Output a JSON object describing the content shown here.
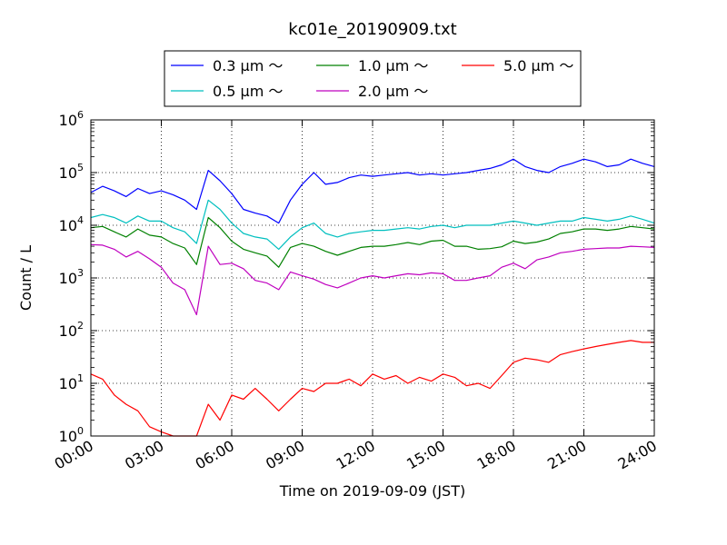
{
  "chart_data": {
    "type": "line",
    "title": "kc01e_20190909.txt",
    "xlabel": "Time on 2019-09-09 (JST)",
    "ylabel": "Count / L",
    "y_scale": "log",
    "ylim": [
      1,
      1000000
    ],
    "xlim_hours": [
      0,
      24
    ],
    "x_ticks": [
      "00:00",
      "03:00",
      "06:00",
      "09:00",
      "12:00",
      "15:00",
      "18:00",
      "21:00",
      "24:00"
    ],
    "y_ticks": [
      {
        "base": "10",
        "exp": "0"
      },
      {
        "base": "10",
        "exp": "1"
      },
      {
        "base": "10",
        "exp": "2"
      },
      {
        "base": "10",
        "exp": "3"
      },
      {
        "base": "10",
        "exp": "4"
      },
      {
        "base": "10",
        "exp": "5"
      },
      {
        "base": "10",
        "exp": "6"
      }
    ],
    "grid": true,
    "legend_placement": "top-center",
    "x_hours": [
      0,
      0.5,
      1,
      1.5,
      2,
      2.5,
      3,
      3.5,
      4,
      4.5,
      5,
      5.5,
      6,
      6.5,
      7,
      7.5,
      8,
      8.5,
      9,
      9.5,
      10,
      10.5,
      11,
      11.5,
      12,
      12.5,
      13,
      13.5,
      14,
      14.5,
      15,
      15.5,
      16,
      16.5,
      17,
      17.5,
      18,
      18.5,
      19,
      19.5,
      20,
      20.5,
      21,
      21.5,
      22,
      22.5,
      23,
      23.5,
      24
    ],
    "series": [
      {
        "name": "0.3 μm ～",
        "color": "#0000ff",
        "values": [
          42000,
          55000,
          45000,
          35000,
          50000,
          40000,
          45000,
          38000,
          30000,
          20000,
          110000,
          70000,
          40000,
          20000,
          17000,
          15000,
          11000,
          30000,
          60000,
          100000,
          60000,
          65000,
          80000,
          90000,
          85000,
          90000,
          95000,
          100000,
          90000,
          95000,
          90000,
          95000,
          100000,
          110000,
          120000,
          140000,
          180000,
          130000,
          110000,
          100000,
          130000,
          150000,
          180000,
          160000,
          130000,
          140000,
          180000,
          150000,
          130000
        ]
      },
      {
        "name": "0.5 μm ～",
        "color": "#00bfbf",
        "values": [
          14000,
          16000,
          14000,
          11000,
          15000,
          12000,
          12000,
          9000,
          7500,
          4500,
          30000,
          20000,
          11000,
          7000,
          6000,
          5500,
          3500,
          6000,
          9000,
          11000,
          7000,
          6000,
          7000,
          7500,
          8000,
          8000,
          8500,
          9000,
          8500,
          9500,
          10000,
          9000,
          10000,
          10000,
          10000,
          11000,
          12000,
          11000,
          10000,
          11000,
          12000,
          12000,
          14000,
          13000,
          12000,
          13000,
          15000,
          13000,
          11000
        ]
      },
      {
        "name": "1.0 μm ～",
        "color": "#008000",
        "values": [
          9000,
          9500,
          7500,
          6000,
          8500,
          6500,
          6000,
          4500,
          3700,
          1800,
          14000,
          9000,
          5000,
          3500,
          3000,
          2600,
          1600,
          3800,
          4500,
          4000,
          3200,
          2700,
          3200,
          3800,
          4000,
          4000,
          4300,
          4700,
          4300,
          5000,
          5200,
          4000,
          4000,
          3500,
          3600,
          3900,
          5000,
          4500,
          4800,
          5500,
          7000,
          7500,
          8500,
          8500,
          8000,
          8500,
          9500,
          9000,
          8500
        ]
      },
      {
        "name": "2.0 μm ～",
        "color": "#bf00bf",
        "values": [
          4300,
          4200,
          3500,
          2500,
          3200,
          2300,
          1600,
          800,
          600,
          200,
          4000,
          1800,
          1900,
          1500,
          900,
          800,
          600,
          1300,
          1100,
          950,
          750,
          650,
          800,
          1000,
          1100,
          1000,
          1100,
          1200,
          1150,
          1250,
          1200,
          900,
          900,
          1000,
          1100,
          1600,
          1900,
          1500,
          2200,
          2500,
          3000,
          3200,
          3500,
          3600,
          3700,
          3700,
          4000,
          3900,
          3800
        ]
      },
      {
        "name": "5.0 μm ～",
        "color": "#ff0000",
        "values": [
          15,
          12,
          6,
          4,
          3,
          1.5,
          1.2,
          1,
          1,
          1,
          4,
          2,
          6,
          5,
          8,
          5,
          3,
          5,
          8,
          7,
          10,
          10,
          12,
          9,
          15,
          12,
          14,
          10,
          13,
          11,
          15,
          13,
          9,
          10,
          8,
          14,
          25,
          30,
          28,
          25,
          35,
          40,
          45,
          50,
          55,
          60,
          65,
          60,
          60
        ]
      }
    ]
  }
}
